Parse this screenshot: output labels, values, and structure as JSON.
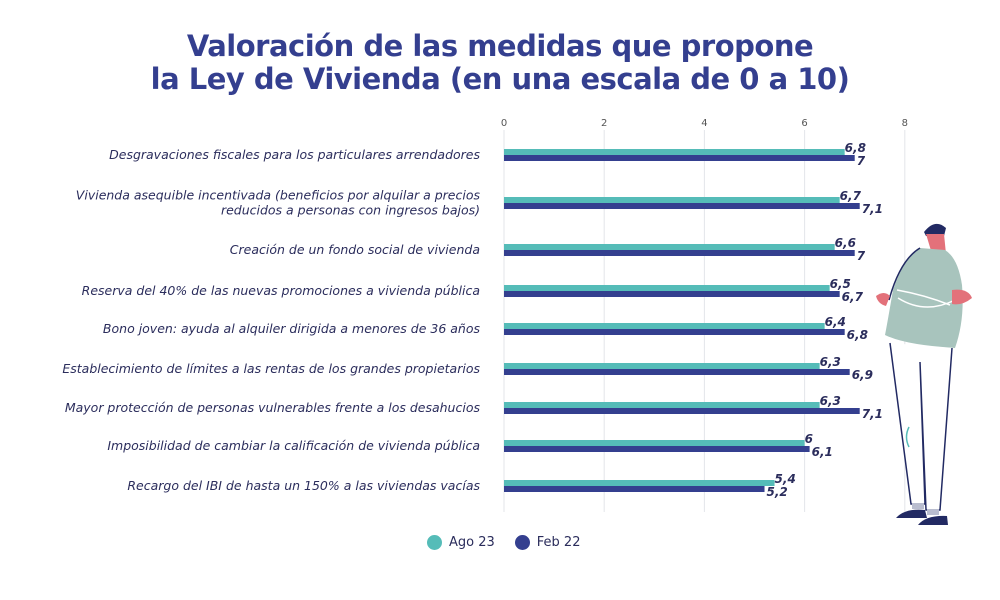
{
  "title_line1": "Valoración de las medidas que propone",
  "title_line2": "la Ley de Vivienda (en una escala de 0 a 10)",
  "chart_data": {
    "type": "bar",
    "orientation": "horizontal",
    "title": "Valoración de las medidas que propone la Ley de Vivienda (en una escala de 0 a 10)",
    "categories": [
      [
        "Desgravaciones fiscales para los particulares arrendadores"
      ],
      [
        "Vivienda asequible incentivada  (beneficios por alquilar a precios",
        "reducidos a personas con ingresos bajos)"
      ],
      [
        "Creación de un fondo social de vivienda"
      ],
      [
        "Reserva del 40% de las nuevas promociones a vivienda pública"
      ],
      [
        "Bono joven: ayuda al alquiler dirigida a menores de 36 años"
      ],
      [
        "Establecimiento de límites a las rentas de los grandes propietarios"
      ],
      [
        "Mayor protección de personas vulnerables frente a los desahucios"
      ],
      [
        "Imposibilidad de cambiar la calificación de vivienda pública"
      ],
      [
        "Recargo del IBI de hasta un 150% a las viviendas vacías"
      ]
    ],
    "series": [
      {
        "name": "Ago 23",
        "color": "#55bcb8",
        "values": [
          6.8,
          6.7,
          6.6,
          6.5,
          6.4,
          6.3,
          6.3,
          6.0,
          5.4
        ],
        "labels": [
          "6,8",
          "6,7",
          "6,6",
          "6,5",
          "6,4",
          "6,3",
          "6,3",
          "6",
          "5,4"
        ]
      },
      {
        "name": "Feb 22",
        "color": "#343f8f",
        "values": [
          7.0,
          7.1,
          7.0,
          6.7,
          6.8,
          6.9,
          7.1,
          6.1,
          5.2
        ],
        "labels": [
          "7",
          "7,1",
          "7",
          "6,7",
          "6,8",
          "6,9",
          "7,1",
          "6,1",
          "5,2"
        ]
      }
    ],
    "xticks": [
      "0",
      "2",
      "4",
      "6",
      "8"
    ],
    "xlim": [
      0,
      8
    ],
    "grid": true,
    "legend": "bottom"
  }
}
